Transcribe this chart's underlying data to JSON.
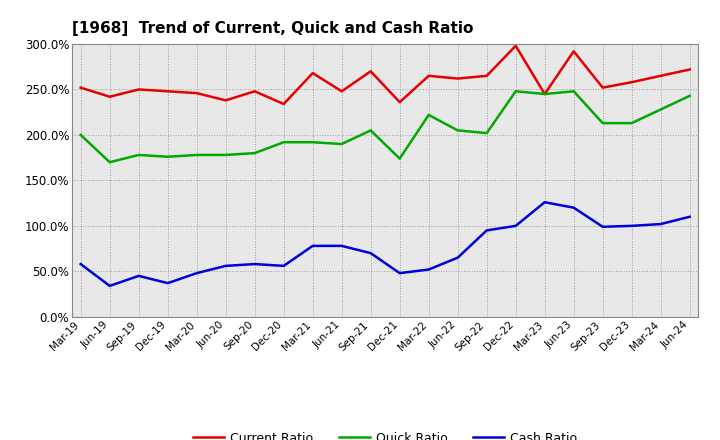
{
  "title": "[1968]  Trend of Current, Quick and Cash Ratio",
  "labels": [
    "Mar-19",
    "Jun-19",
    "Sep-19",
    "Dec-19",
    "Mar-20",
    "Jun-20",
    "Sep-20",
    "Dec-20",
    "Mar-21",
    "Jun-21",
    "Sep-21",
    "Dec-21",
    "Mar-22",
    "Jun-22",
    "Sep-22",
    "Dec-22",
    "Mar-23",
    "Jun-23",
    "Sep-23",
    "Dec-23",
    "Mar-24",
    "Jun-24"
  ],
  "current_ratio": [
    252,
    242,
    250,
    248,
    246,
    238,
    248,
    234,
    268,
    248,
    270,
    236,
    265,
    262,
    265,
    298,
    245,
    292,
    252,
    258,
    265,
    272
  ],
  "quick_ratio": [
    200,
    170,
    178,
    176,
    178,
    178,
    180,
    192,
    192,
    190,
    205,
    174,
    222,
    205,
    202,
    248,
    245,
    248,
    213,
    213,
    228,
    243
  ],
  "cash_ratio": [
    58,
    34,
    45,
    37,
    48,
    56,
    58,
    56,
    78,
    78,
    70,
    48,
    52,
    65,
    95,
    100,
    126,
    120,
    99,
    100,
    102,
    110
  ],
  "ylim": [
    0,
    300
  ],
  "yticks": [
    0,
    50,
    100,
    150,
    200,
    250,
    300
  ],
  "current_color": "#e60000",
  "quick_color": "#00aa00",
  "cash_color": "#0000dd",
  "bg_color": "#ffffff",
  "plot_bg_color": "#e8e8e8",
  "grid_color": "#888888",
  "legend_labels": [
    "Current Ratio",
    "Quick Ratio",
    "Cash Ratio"
  ]
}
